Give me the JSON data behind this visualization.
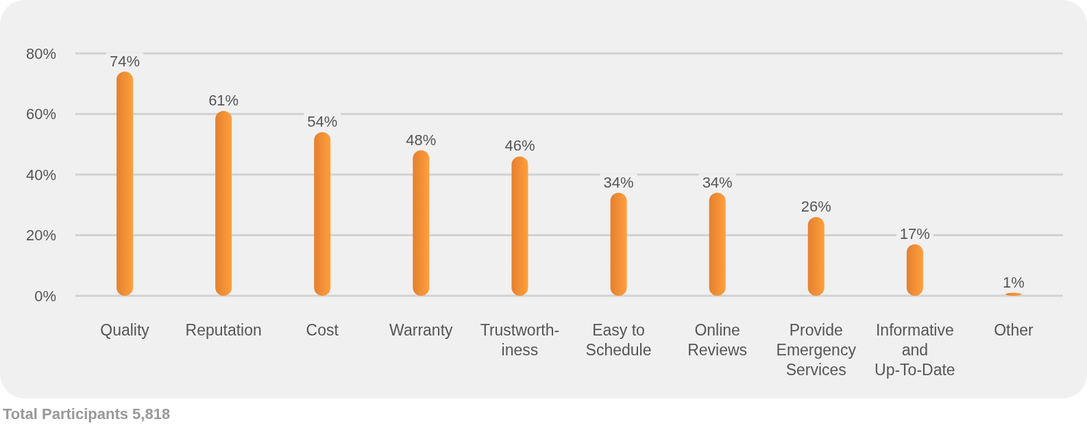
{
  "chart_data": {
    "type": "bar",
    "categories": [
      "Quality",
      "Reputation",
      "Cost",
      "Warranty",
      "Trustworth-iness",
      "Easy to Schedule",
      "Online Reviews",
      "Provide Emergency Services",
      "Informative and Up-To-Date",
      "Other"
    ],
    "values": [
      74,
      61,
      54,
      48,
      46,
      34,
      34,
      26,
      17,
      1
    ],
    "value_labels": [
      "74%",
      "61%",
      "54%",
      "48%",
      "46%",
      "34%",
      "34%",
      "26%",
      "17%",
      "1%"
    ],
    "color": "#f58a34",
    "ylim": [
      0,
      80
    ],
    "yticks": [
      {
        "value": 0,
        "label": "0%"
      },
      {
        "value": 20,
        "label": "20%"
      },
      {
        "value": 40,
        "label": "40%"
      },
      {
        "value": 60,
        "label": "60%"
      },
      {
        "value": 80,
        "label": "80%"
      }
    ],
    "grid": "y",
    "annotations": [
      "Total Participants 5,818"
    ]
  }
}
